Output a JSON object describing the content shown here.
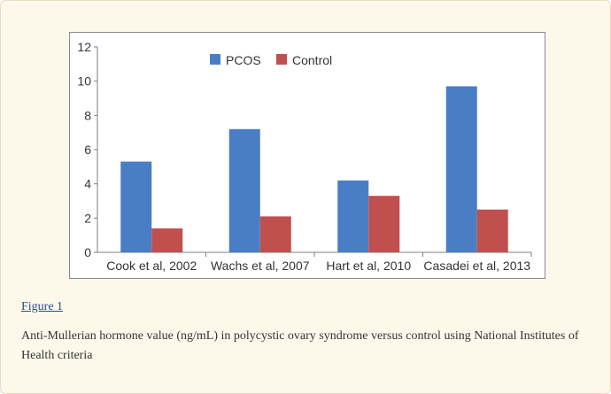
{
  "figure": {
    "link_label": "Figure 1",
    "caption": "Anti-Mullerian hormone value (ng/mL) in polycystic ovary syndrome versus control using National Institutes of Health criteria"
  },
  "chart_data": {
    "type": "bar",
    "title": "",
    "xlabel": "",
    "ylabel": "",
    "categories": [
      "Cook et al, 2002",
      "Wachs et al, 2007",
      "Hart et al, 2010",
      "Casadei et al, 2013"
    ],
    "series": [
      {
        "name": "PCOS",
        "color": "#4a7ec4",
        "values": [
          5.3,
          7.2,
          4.2,
          9.7
        ]
      },
      {
        "name": "Control",
        "color": "#c0504d",
        "values": [
          1.4,
          2.1,
          3.3,
          2.5
        ]
      }
    ],
    "ylim": [
      0,
      12
    ],
    "yticks": [
      0,
      2,
      4,
      6,
      8,
      10,
      12
    ],
    "grid": false,
    "legend": "top-center"
  }
}
